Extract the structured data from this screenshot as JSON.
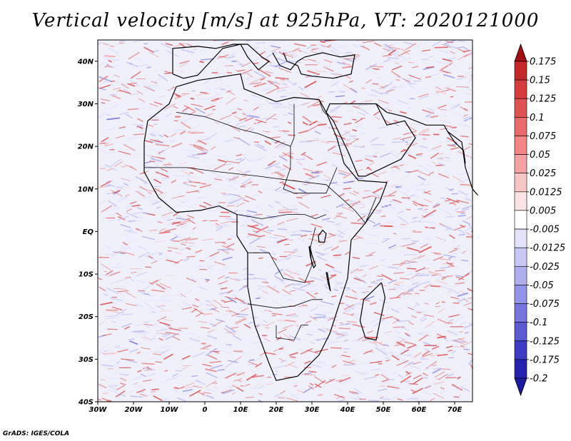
{
  "title": "Vertical velocity [m/s] at 925hPa, VT: 2020121000",
  "credit": "GrADS: IGES/COLA",
  "map": {
    "lon_range": [
      -30,
      75
    ],
    "lat_range": [
      -40,
      45
    ],
    "lat_ticks": [
      {
        "value": 40,
        "label": "40N"
      },
      {
        "value": 30,
        "label": "30N"
      },
      {
        "value": 20,
        "label": "20N"
      },
      {
        "value": 10,
        "label": "10N"
      },
      {
        "value": 0,
        "label": "EQ"
      },
      {
        "value": -10,
        "label": "10S"
      },
      {
        "value": -20,
        "label": "20S"
      },
      {
        "value": -30,
        "label": "30S"
      },
      {
        "value": -40,
        "label": "40S"
      }
    ],
    "lon_ticks": [
      {
        "value": -30,
        "label": "30W"
      },
      {
        "value": -20,
        "label": "20W"
      },
      {
        "value": -10,
        "label": "10W"
      },
      {
        "value": 0,
        "label": "0"
      },
      {
        "value": 10,
        "label": "10E"
      },
      {
        "value": 20,
        "label": "20E"
      },
      {
        "value": 30,
        "label": "30E"
      },
      {
        "value": 40,
        "label": "40E"
      },
      {
        "value": 50,
        "label": "50E"
      },
      {
        "value": 60,
        "label": "60E"
      },
      {
        "value": 70,
        "label": "70E"
      }
    ]
  },
  "colorbar": {
    "levels": [
      {
        "label": "0.175",
        "color": "#b01414"
      },
      {
        "label": "0.15",
        "color": "#c42828"
      },
      {
        "label": "0.125",
        "color": "#d63c3c"
      },
      {
        "label": "0.1",
        "color": "#e05252"
      },
      {
        "label": "0.075",
        "color": "#e86a6a"
      },
      {
        "label": "0.05",
        "color": "#ef8585"
      },
      {
        "label": "0.025",
        "color": "#f4a2a2"
      },
      {
        "label": "0.0125",
        "color": "#f9c6c6"
      },
      {
        "label": "0.005",
        "color": "#fce3e3"
      },
      {
        "label": "-0.005",
        "color": "#ffffff"
      },
      {
        "label": "-0.0125",
        "color": "#e3e3fb"
      },
      {
        "label": "-0.025",
        "color": "#c8c8f6"
      },
      {
        "label": "-0.05",
        "color": "#aeaef0"
      },
      {
        "label": "-0.075",
        "color": "#9292e8"
      },
      {
        "label": "-0.1",
        "color": "#7676de"
      },
      {
        "label": "-0.125",
        "color": "#5a5ad2"
      },
      {
        "label": "-0.175",
        "color": "#3c3cc4"
      },
      {
        "label": "-0.2",
        "color": "#2424b0"
      }
    ],
    "top_arrow_color": "#a01010",
    "bottom_arrow_color": "#1a1aa0"
  }
}
